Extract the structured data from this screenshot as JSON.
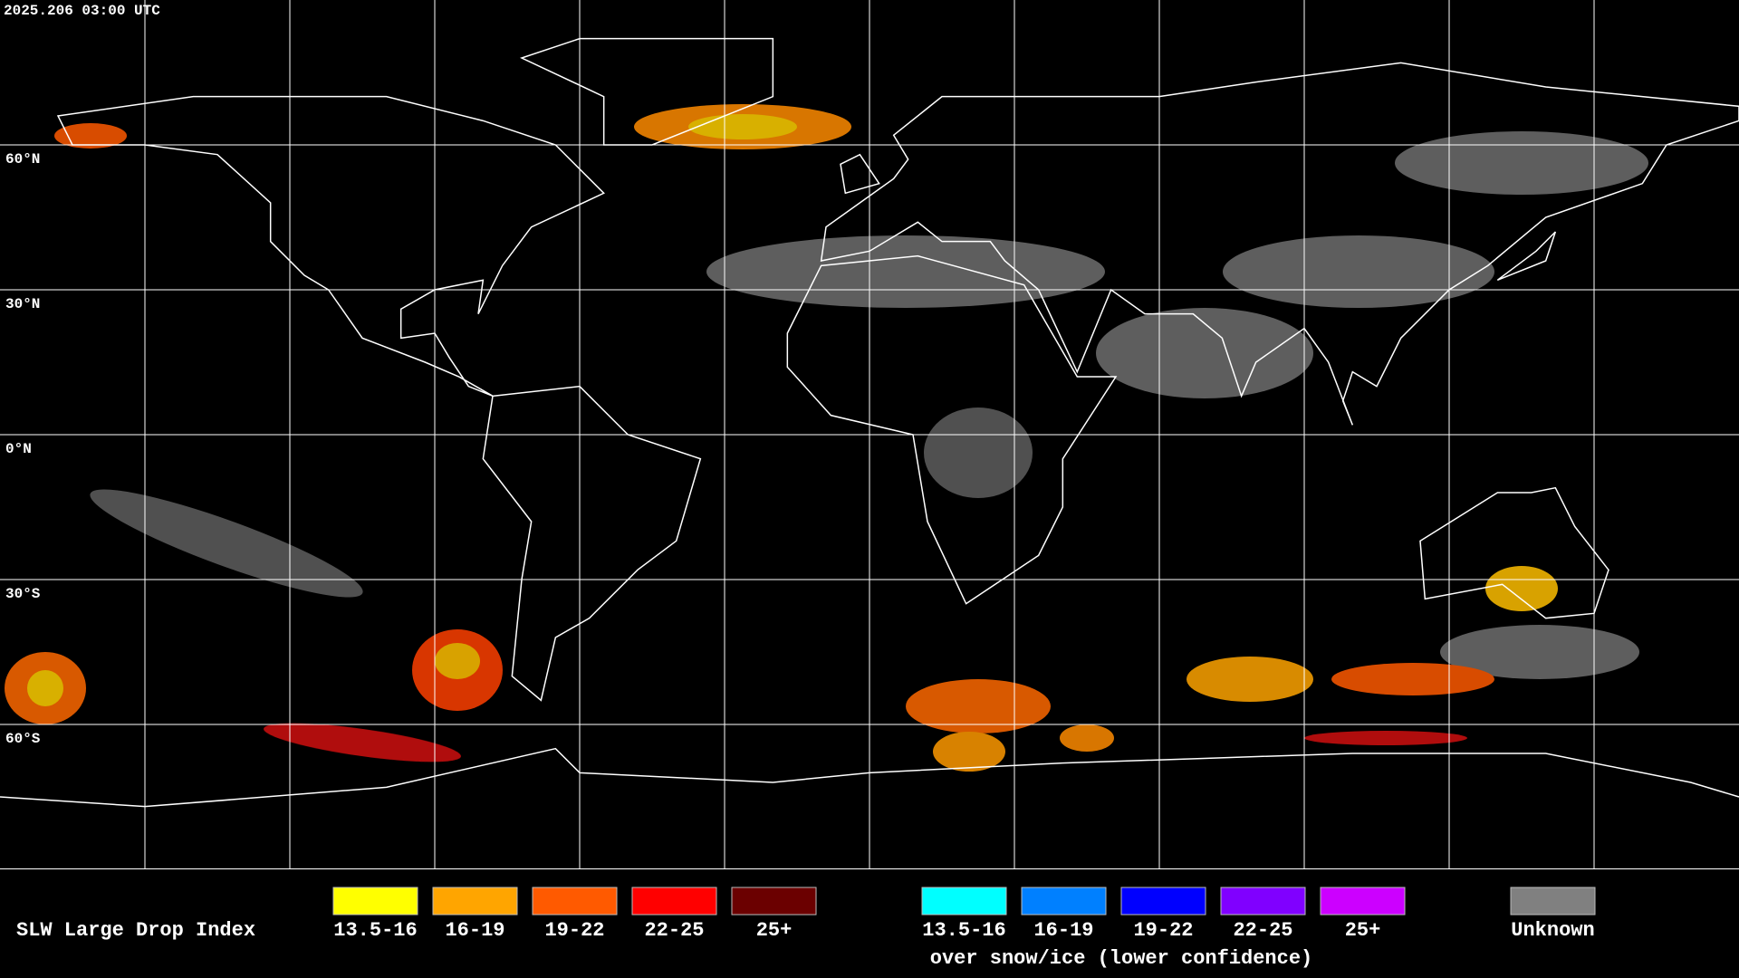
{
  "timestamp": "2025.206 03:00 UTC",
  "latitude_labels": [
    "60°N",
    "30°N",
    "0°N",
    "30°S",
    "60°S"
  ],
  "legend": {
    "title": "SLW Large Drop Index",
    "items": [
      {
        "label": "13.5-16",
        "color": "#ffff00"
      },
      {
        "label": "16-19",
        "color": "#ffa500"
      },
      {
        "label": "19-22",
        "color": "#ff5a00"
      },
      {
        "label": "22-25",
        "color": "#ff0000"
      },
      {
        "label": "25+",
        "color": "#6b0000"
      }
    ],
    "snow_ice_items": [
      {
        "label": "13.5-16",
        "color": "#00ffff"
      },
      {
        "label": "16-19",
        "color": "#0080ff"
      },
      {
        "label": "19-22",
        "color": "#0000ff"
      },
      {
        "label": "22-25",
        "color": "#8000ff"
      },
      {
        "label": "25+",
        "color": "#cc00ff"
      }
    ],
    "snow_ice_caption": "over snow/ice (lower confidence)",
    "unknown": {
      "label": "Unknown",
      "color": "#808080"
    }
  }
}
